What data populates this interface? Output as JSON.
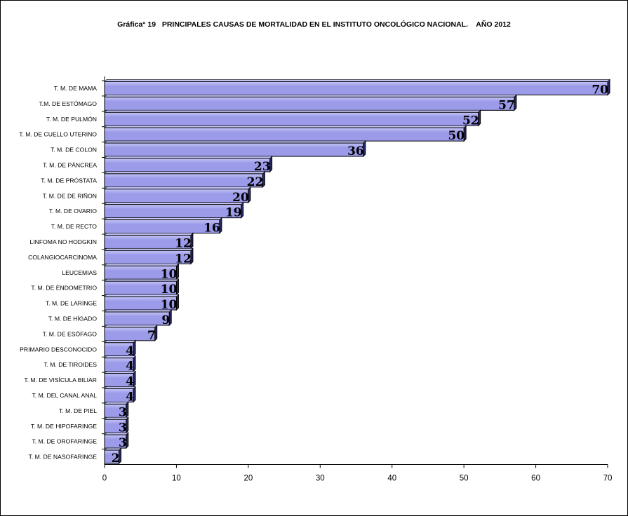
{
  "chart_data": {
    "type": "bar",
    "orientation": "horizontal",
    "title": "Gráfica° 19   PRINCIPALES CAUSAS DE MORTALIDAD EN EL INSTITUTO ONCOLÓGICO NACIONAL.    AÑO 2012",
    "categories": [
      "T. M.  DE MAMA",
      "T.M. DE ESTÓMAGO",
      "T. M.  DE PULMÓN",
      "T. M. DE CUELLO UTERINO",
      "T. M.  DE COLON",
      "T. M. DE PÁNCREA",
      "T. M. DE PRÓSTATA",
      "T. M. DE DE RIÑON",
      "T. M. DE OVARIO",
      "T. M. DE RECTO",
      "LINFOMA NO HODGKIN",
      "COLANGIOCARCINOMA",
      "LEUCEMIAS",
      "T. M.  DE ENDOMETRIO",
      "T. M. DE LARINGE",
      "T. M.  DE HÍGADO",
      "T. M. DE ESÓFAGO",
      "PRIMARIO DESCONOCIDO",
      "T. M. DE TIROIDES",
      "T. M.  DE VISÍCULA BILIAR",
      "T. M. DEL CANAL ANAL",
      "T. M.  DE PIEL",
      "T. M. DE HIPOFARINGE",
      "T. M. DE OROFARINGE",
      "T. M. DE NASOFARINGE"
    ],
    "values": [
      70,
      57,
      52,
      50,
      36,
      23,
      22,
      20,
      19,
      16,
      12,
      12,
      10,
      10,
      10,
      9,
      7,
      4,
      4,
      4,
      4,
      3,
      3,
      3,
      2
    ],
    "xlim": [
      0,
      70
    ],
    "xticks": [
      0,
      10,
      20,
      30,
      40,
      50,
      60,
      70
    ],
    "xlabel": "",
    "ylabel": "",
    "grid": false,
    "legend": "none",
    "colors": {
      "bar_fill": "#9b9bea",
      "bar_highlight": "#c4c4f6",
      "bar_side": "#2a2a6a",
      "bar_edge": "#000000"
    }
  }
}
